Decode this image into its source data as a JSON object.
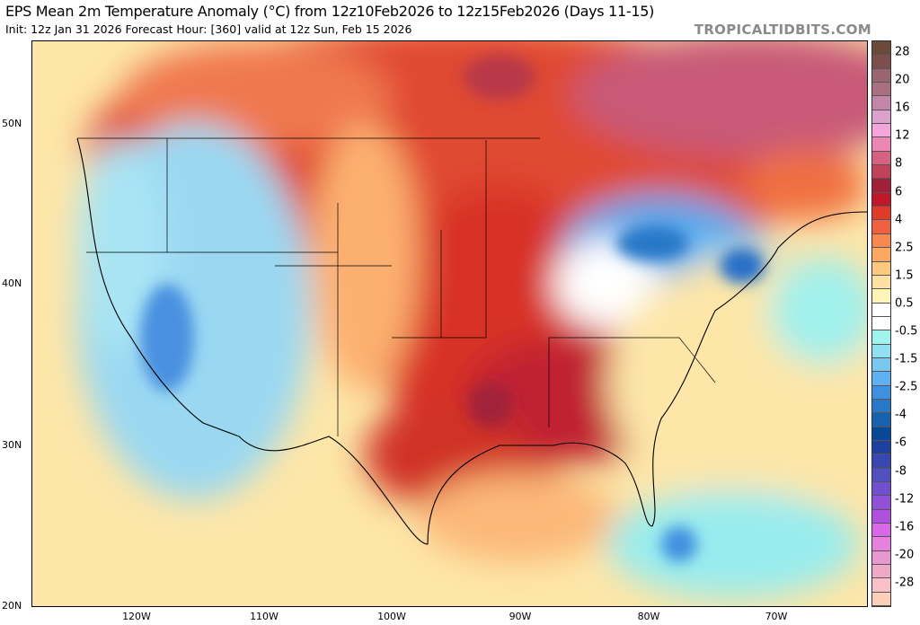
{
  "header": {
    "title": "EPS Mean 2m Temperature Anomaly (°C) from 12z10Feb2026 to 12z15Feb2026 (Days 11-15)",
    "subtitle": "Init: 12z Jan 31 2026   Forecast Hour: [360]   valid at 12z Sun, Feb 15 2026",
    "brand": "TROPICALTIDBITS.COM"
  },
  "axes": {
    "lat_labels": [
      "50N",
      "40N",
      "30N",
      "20N"
    ],
    "lon_labels": [
      "120W",
      "110W",
      "100W",
      "90W",
      "80W",
      "70W"
    ]
  },
  "colorbar": {
    "labels": [
      "28",
      "20",
      "16",
      "12",
      "8",
      "6",
      "4",
      "2.5",
      "1.5",
      "0.5",
      "-0.5",
      "-1.5",
      "-2.5",
      "-4",
      "-6",
      "-8",
      "-12",
      "-16",
      "-20",
      "-28"
    ],
    "colors": [
      "#6b4a3a",
      "#7d4f4c",
      "#9a6470",
      "#a87080",
      "#c286a8",
      "#dca0cc",
      "#f4a6dc",
      "#ee86b4",
      "#d96080",
      "#c0435a",
      "#a0203a",
      "#c0182a",
      "#e03a2a",
      "#f06040",
      "#f88850",
      "#fca860",
      "#fdc880",
      "#fee0a0",
      "#fff4b8",
      "#ffffff",
      "#ffffff",
      "#a0f4ee",
      "#90e0f4",
      "#78c8f0",
      "#60b0f4",
      "#4090e0",
      "#2878c8",
      "#1860b0",
      "#084898",
      "#2040a0",
      "#3848b0",
      "#5050c0",
      "#7050d0",
      "#9050d8",
      "#b050e0",
      "#d868e8",
      "#e880e0",
      "#e898d0",
      "#f0a8c8",
      "#f8c0c8",
      "#fcd0b8"
    ]
  }
}
